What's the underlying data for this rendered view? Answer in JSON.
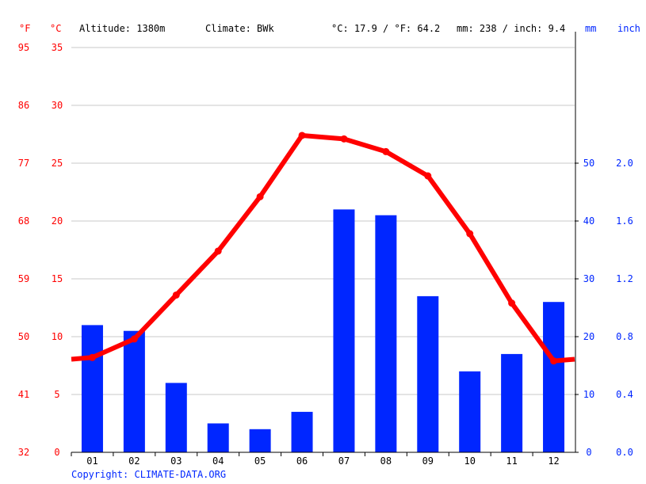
{
  "header": {
    "f_unit": "°F",
    "c_unit": "°C",
    "altitude": "Altitude: 1380m",
    "climate": "Climate: BWk",
    "temp_avg": "°C: 17.9 / °F: 64.2",
    "precip_total": "mm: 238 / inch: 9.4",
    "mm_unit": "mm",
    "inch_unit": "inch"
  },
  "copyright": "Copyright: CLIMATE-DATA.ORG",
  "colors": {
    "temp": "#ff0000",
    "precip": "#0026ff",
    "grid": "#c8c8c8"
  },
  "chart_data": {
    "type": "bar+line",
    "categories": [
      "01",
      "02",
      "03",
      "04",
      "05",
      "06",
      "07",
      "08",
      "09",
      "10",
      "11",
      "12"
    ],
    "series": [
      {
        "unit": "mm",
        "type": "bar",
        "values": [
          22,
          21,
          12,
          5,
          4,
          7,
          42,
          41,
          27,
          14,
          17,
          26
        ]
      },
      {
        "unit": "°C",
        "type": "line",
        "values": [
          8.2,
          9.8,
          13.6,
          17.4,
          22.1,
          27.4,
          27.1,
          26.0,
          23.9,
          18.9,
          12.9,
          7.9
        ]
      }
    ],
    "c_ticks": [
      "0",
      "5",
      "10",
      "15",
      "20",
      "25",
      "30",
      "35"
    ],
    "f_ticks": [
      "32",
      "41",
      "50",
      "59",
      "68",
      "77",
      "86",
      "95"
    ],
    "mm_ticks": [
      "0",
      "10",
      "20",
      "30",
      "40",
      "50"
    ],
    "inch_ticks": [
      "0.0",
      "0.4",
      "0.8",
      "1.2",
      "1.6",
      "2.0"
    ],
    "ylim_c": [
      0,
      35
    ],
    "ylim_mm": [
      0,
      70
    ],
    "grid": true
  }
}
